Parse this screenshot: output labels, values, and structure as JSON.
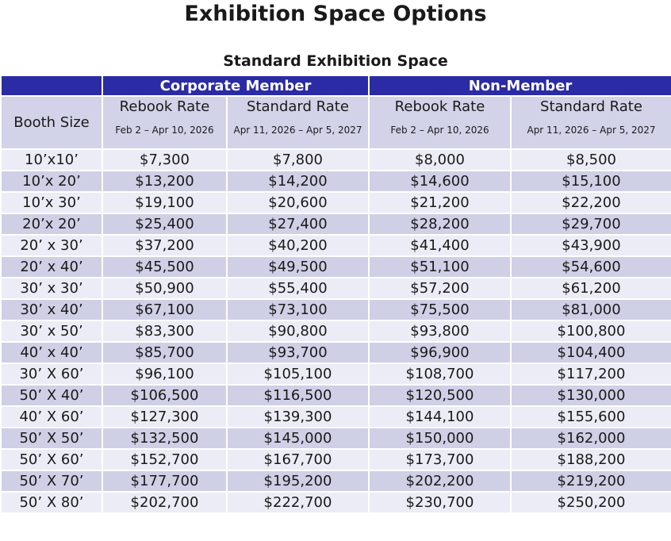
{
  "title": "Exhibition Space Options",
  "subtitle": "Standard Exhibition Space",
  "table": {
    "row_header": "Booth Size",
    "groups": [
      "Corporate Member",
      "Non-Member"
    ],
    "columns": [
      {
        "label": "Rebook Rate",
        "dates": "Feb 2 – Apr 10, 2026"
      },
      {
        "label": "Standard Rate",
        "dates": "Apr 11, 2026 – Apr 5, 2027"
      },
      {
        "label": "Rebook Rate",
        "dates": "Feb 2 – Apr 10, 2026"
      },
      {
        "label": "Standard Rate",
        "dates": "Apr 11, 2026 – Apr 5, 2027"
      }
    ],
    "rows": [
      [
        "10’x10’",
        "$7,300",
        "$7,800",
        "$8,000",
        "$8,500"
      ],
      [
        "10’x 20’",
        "$13,200",
        "$14,200",
        "$14,600",
        "$15,100"
      ],
      [
        "10’x 30’",
        "$19,100",
        "$20,600",
        "$21,200",
        "$22,200"
      ],
      [
        "20’x 20’",
        "$25,400",
        "$27,400",
        "$28,200",
        "$29,700"
      ],
      [
        "20’ x 30’",
        "$37,200",
        "$40,200",
        "$41,400",
        "$43,900"
      ],
      [
        "20’ x 40’",
        "$45,500",
        "$49,500",
        "$51,100",
        "$54,600"
      ],
      [
        "30’ x 30’",
        "$50,900",
        "$55,400",
        "$57,200",
        "$61,200"
      ],
      [
        "30’ x 40’",
        "$67,100",
        "$73,100",
        "$75,500",
        "$81,000"
      ],
      [
        "30’ x 50’",
        "$83,300",
        "$90,800",
        "$93,800",
        "$100,800"
      ],
      [
        "40’ x 40’",
        "$85,700",
        "$93,700",
        "$96,900",
        "$104,400"
      ],
      [
        "30’ X 60’",
        "$96,100",
        "$105,100",
        "$108,700",
        "$117,200"
      ],
      [
        "50’ X 40’",
        "$106,500",
        "$116,500",
        "$120,500",
        "$130,000"
      ],
      [
        "40’ X 60’",
        "$127,300",
        "$139,300",
        "$144,100",
        "$155,600"
      ],
      [
        "50’ X 50’",
        "$132,500",
        "$145,000",
        "$150,000",
        "$162,000"
      ],
      [
        "50’ X 60’",
        "$152,700",
        "$167,700",
        "$173,700",
        "$188,200"
      ],
      [
        "50’ X 70’",
        "$177,700",
        "$195,200",
        "$202,200",
        "$219,200"
      ],
      [
        "50’ X 80’",
        "$202,700",
        "$222,700",
        "$230,700",
        "$250,200"
      ]
    ]
  }
}
